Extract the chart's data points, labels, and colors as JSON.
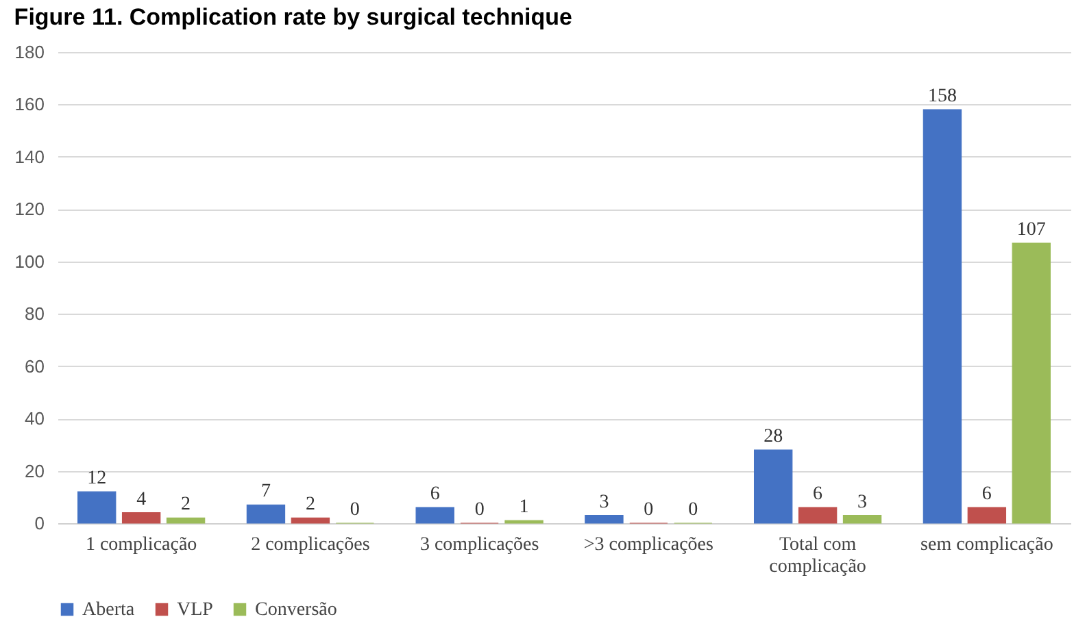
{
  "chart_data": {
    "type": "bar",
    "title": "Figure 11. Complication rate by surgical technique",
    "categories": [
      "1 complicação",
      "2 complicações",
      "3 complicações",
      ">3 complicações",
      "Total com\ncomplicação",
      "sem complicação"
    ],
    "series": [
      {
        "name": "Aberta",
        "color": "#4472c4",
        "values": [
          12,
          7,
          6,
          3,
          28,
          158
        ]
      },
      {
        "name": "VLP",
        "color": "#c0504d",
        "values": [
          4,
          2,
          0,
          0,
          6,
          6
        ]
      },
      {
        "name": "Conversão",
        "color": "#9bbb59",
        "values": [
          2,
          0,
          1,
          0,
          3,
          107
        ]
      }
    ],
    "ylim": [
      0,
      180
    ],
    "yticks": [
      0,
      20,
      40,
      60,
      80,
      100,
      120,
      140,
      160,
      180
    ],
    "grid": "y",
    "legend": "bottom",
    "data_labels": true
  }
}
